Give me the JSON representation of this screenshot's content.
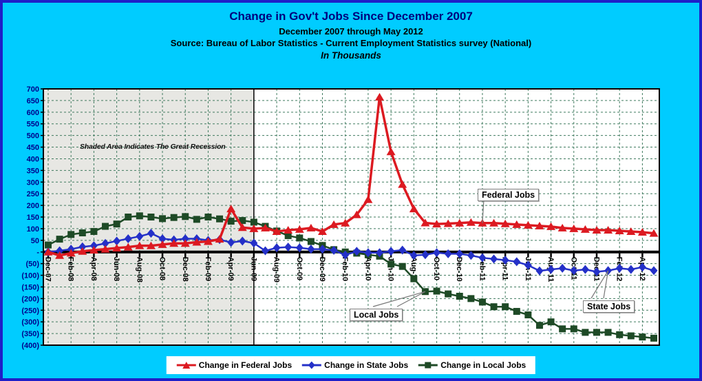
{
  "colors": {
    "background": "#00CCFF",
    "page_border": "#1F1FC8",
    "plot_bg": "#FFFFFF",
    "recession_shade": "#E7E7E3",
    "gridline": "#3F7A5E",
    "axis": "#000000",
    "y_labels": "#00008B",
    "x_labels": "#000000",
    "title": "#00007D",
    "legend_bg": "#FFFFFF",
    "callout_border": "#7F7F7F",
    "federal": "#DC1A21",
    "state": "#2430C8",
    "local": "#1E4A26"
  },
  "chart_data": {
    "type": "line",
    "title": "Change in Gov't Jobs Since December 2007",
    "subtitle": "December 2007 through May 2012",
    "source": "Source: Bureau of Labor Statistics - Current Employment Statistics survey (National)",
    "units_label": "In Thousands",
    "ylim": [
      -400,
      700
    ],
    "ytick_step": 50,
    "y_tick_labels": [
      "700",
      "650",
      "600",
      "550",
      "500",
      "450",
      "400",
      "350",
      "300",
      "250",
      "200",
      "150",
      "100",
      "50",
      "-",
      "(50)",
      "(100)",
      "(150)",
      "(200)",
      "(250)",
      "(300)",
      "(350)",
      "(400)"
    ],
    "grid": "dashed",
    "legend_position": "bottom",
    "months": [
      "Dec-07",
      "Jan-08",
      "Feb-08",
      "Mar-08",
      "Apr-08",
      "May-08",
      "Jun-08",
      "Jul-08",
      "Aug-08",
      "Sep-08",
      "Oct-08",
      "Nov-08",
      "Dec-08",
      "Jan-09",
      "Feb-09",
      "Mar-09",
      "Apr-09",
      "May-09",
      "Jun-09",
      "Jul-09",
      "Aug-09",
      "Sep-09",
      "Oct-09",
      "Nov-09",
      "Dec-09",
      "Jan-10",
      "Feb-10",
      "Mar-10",
      "Apr-10",
      "May-10",
      "Jun-10",
      "Jul-10",
      "Aug-10",
      "Sep-10",
      "Oct-10",
      "Nov-10",
      "Dec-10",
      "Jan-11",
      "Feb-11",
      "Mar-11",
      "Apr-11",
      "May-11",
      "Jun-11",
      "Jul-11",
      "Aug-11",
      "Sep-11",
      "Oct-11",
      "Nov-11",
      "Dec-11",
      "Jan-12",
      "Feb-12",
      "Mar-12",
      "Apr-12",
      "May-12"
    ],
    "x_tick_labels": [
      "Dec-07",
      "Feb-08",
      "Apr-08",
      "Jun-08",
      "Aug-08",
      "Oct-08",
      "Dec-08",
      "Feb-09",
      "Apr-09",
      "Jun-09",
      "Aug-09",
      "Oct-09",
      "Dec-09",
      "Feb-10",
      "Apr-10",
      "Jun-10",
      "Aug-10",
      "Oct-10",
      "Dec-10",
      "Feb-11",
      "Apr-11",
      "Jun-11",
      "Aug-11",
      "Oct-11",
      "Dec-11",
      "Feb-12",
      "Apr-12"
    ],
    "recession_shading": {
      "from": "Dec-07",
      "to": "Jun-09",
      "note": "Shaded Area Indicates The Great Recession"
    },
    "annotations": {
      "callouts": [
        {
          "label": "Federal Jobs",
          "series": "federal",
          "month": "Feb-11"
        },
        {
          "label": "Local Jobs",
          "series": "local",
          "month": "Sep-10"
        },
        {
          "label": "State Jobs",
          "series": "state",
          "month": "Jan-12"
        }
      ]
    },
    "series": [
      {
        "id": "federal",
        "name": "Change in Federal Jobs",
        "color": "#DC1A21",
        "marker": "triangle",
        "values": [
          0,
          -15,
          -5,
          3,
          8,
          12,
          17,
          21,
          27,
          27,
          32,
          37,
          37,
          42,
          45,
          55,
          185,
          105,
          100,
          103,
          88,
          94,
          97,
          103,
          88,
          118,
          124,
          160,
          225,
          665,
          430,
          290,
          185,
          125,
          120,
          122,
          124,
          127,
          124,
          124,
          121,
          118,
          115,
          112,
          109,
          103,
          100,
          97,
          94,
          94,
          91,
          88,
          85,
          80
        ]
      },
      {
        "id": "state",
        "name": "Change in State Jobs",
        "color": "#2430C8",
        "marker": "diamond",
        "values": [
          0,
          5,
          12,
          22,
          27,
          37,
          47,
          57,
          67,
          80,
          57,
          52,
          57,
          57,
          50,
          53,
          41,
          47,
          38,
          5,
          18,
          21,
          18,
          12,
          12,
          7,
          -13,
          3,
          -3,
          -3,
          3,
          8,
          -15,
          -12,
          -3,
          -8,
          -8,
          -15,
          -25,
          -30,
          -35,
          -42,
          -57,
          -81,
          -75,
          -70,
          -80,
          -75,
          -85,
          -80,
          -70,
          -75,
          -65,
          -80
        ]
      },
      {
        "id": "local",
        "name": "Change in Local Jobs",
        "color": "#1E4A26",
        "marker": "square",
        "values": [
          30,
          55,
          75,
          82,
          88,
          110,
          120,
          150,
          155,
          150,
          143,
          148,
          152,
          140,
          150,
          142,
          132,
          135,
          128,
          110,
          90,
          70,
          60,
          45,
          28,
          10,
          0,
          -5,
          -12,
          -18,
          -52,
          -62,
          -115,
          -170,
          -168,
          -180,
          -190,
          -200,
          -215,
          -235,
          -235,
          -255,
          -270,
          -315,
          -300,
          -330,
          -330,
          -345,
          -345,
          -345,
          -355,
          -360,
          -365,
          -370
        ]
      }
    ]
  }
}
